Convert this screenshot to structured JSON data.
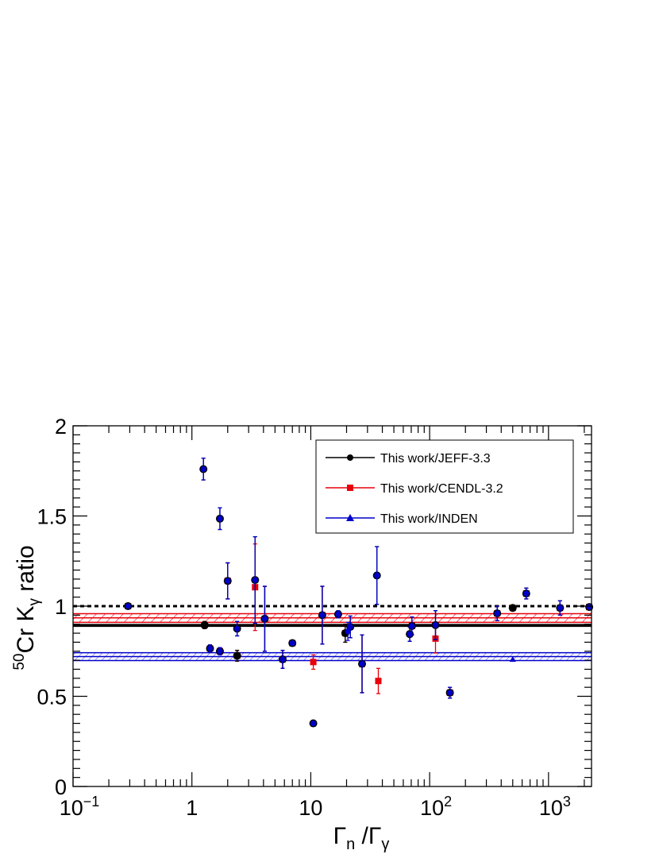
{
  "chart_data": {
    "type": "scatter",
    "x_scale": "log",
    "xlim": [
      0.1,
      2300
    ],
    "ylim": [
      0,
      2
    ],
    "grid": false,
    "legend_position": "top-right",
    "colors": {
      "jeff": "#000000",
      "cendl": "#e8000b",
      "inden": "#0000cc"
    },
    "x_tick_labels": [
      {
        "x": 0.1,
        "base": "10",
        "exp": "−1"
      },
      {
        "x": 1,
        "base": "1",
        "exp": ""
      },
      {
        "x": 10,
        "base": "10",
        "exp": ""
      },
      {
        "x": 100,
        "base": "10",
        "exp": "2"
      },
      {
        "x": 1000,
        "base": "10",
        "exp": "3"
      }
    ],
    "y_tick_labels": [
      {
        "y": 0,
        "label": "0"
      },
      {
        "y": 0.5,
        "label": "0.5"
      },
      {
        "y": 1,
        "label": "1"
      },
      {
        "y": 1.5,
        "label": "1.5"
      },
      {
        "y": 2,
        "label": "2"
      }
    ],
    "xlabel": {
      "main": "Γ",
      "sub1": "n",
      "mid": " /Γ",
      "sub2": "γ"
    },
    "ylabel": {
      "sup": "50",
      "main": "Cr K",
      "sub": "γ",
      "tail": " ratio"
    },
    "legend": [
      "This work/JEFF-3.3",
      "This work/CENDL-3.2",
      "This work/INDEN"
    ],
    "bands": [
      {
        "series": 0,
        "center": 0.893,
        "low": 0.888,
        "high": 0.898
      },
      {
        "series": 1,
        "center": 0.935,
        "low": 0.91,
        "high": 0.958
      },
      {
        "series": 2,
        "center": 0.72,
        "low": 0.698,
        "high": 0.742
      }
    ],
    "reference_line": 1.0,
    "series": [
      {
        "name": "This work/JEFF-3.3",
        "marker": "circle",
        "points": [
          {
            "x": 0.29,
            "y": 1.0,
            "err": 0.0
          },
          {
            "x": 1.25,
            "y": 1.76,
            "err": 0.06
          },
          {
            "x": 1.28,
            "y": 0.895,
            "err": 0.02
          },
          {
            "x": 1.42,
            "y": 0.765,
            "err": 0.02
          },
          {
            "x": 1.72,
            "y": 1.485,
            "err": 0.06
          },
          {
            "x": 1.72,
            "y": 0.75,
            "err": 0.02
          },
          {
            "x": 2.0,
            "y": 1.14,
            "err": 0.1
          },
          {
            "x": 2.4,
            "y": 0.875,
            "err": 0.04
          },
          {
            "x": 2.4,
            "y": 0.725,
            "err": 0.03
          },
          {
            "x": 3.4,
            "y": 1.145,
            "err": 0.24
          },
          {
            "x": 4.1,
            "y": 0.93,
            "err": 0.18
          },
          {
            "x": 5.8,
            "y": 0.705,
            "err": 0.05
          },
          {
            "x": 7.0,
            "y": 0.795,
            "err": 0.01
          },
          {
            "x": 10.5,
            "y": 0.35,
            "err": 0.0
          },
          {
            "x": 12.5,
            "y": 0.95,
            "err": 0.16
          },
          {
            "x": 17.0,
            "y": 0.955,
            "err": 0.02
          },
          {
            "x": 19.5,
            "y": 0.85,
            "err": 0.05
          },
          {
            "x": 21.5,
            "y": 0.885,
            "err": 0.06
          },
          {
            "x": 27.0,
            "y": 0.68,
            "err": 0.16
          },
          {
            "x": 36.0,
            "y": 1.17,
            "err": 0.16
          },
          {
            "x": 68.0,
            "y": 0.845,
            "err": 0.04
          },
          {
            "x": 71.0,
            "y": 0.89,
            "err": 0.05
          },
          {
            "x": 112.0,
            "y": 0.895,
            "err": 0.08
          },
          {
            "x": 148.0,
            "y": 0.52,
            "err": 0.03
          },
          {
            "x": 370.0,
            "y": 0.96,
            "err": 0.04
          },
          {
            "x": 500.0,
            "y": 0.99,
            "err": 0.01
          },
          {
            "x": 650.0,
            "y": 1.07,
            "err": 0.03
          },
          {
            "x": 1250.0,
            "y": 0.99,
            "err": 0.04
          },
          {
            "x": 2200.0,
            "y": 0.995,
            "err": 0.01
          }
        ]
      },
      {
        "name": "This work/CENDL-3.2",
        "marker": "square",
        "points": [
          {
            "x": 0.29,
            "y": 1.0,
            "err": 0.0
          },
          {
            "x": 1.28,
            "y": 0.895,
            "err": 0.02
          },
          {
            "x": 1.42,
            "y": 0.765,
            "err": 0.02
          },
          {
            "x": 1.72,
            "y": 0.75,
            "err": 0.02
          },
          {
            "x": 2.0,
            "y": 1.14,
            "err": 0.1
          },
          {
            "x": 2.4,
            "y": 0.725,
            "err": 0.03
          },
          {
            "x": 3.4,
            "y": 1.105,
            "err": 0.24
          },
          {
            "x": 4.1,
            "y": 0.93,
            "err": 0.18
          },
          {
            "x": 5.8,
            "y": 0.705,
            "err": 0.05
          },
          {
            "x": 7.0,
            "y": 0.795,
            "err": 0.01
          },
          {
            "x": 10.5,
            "y": 0.69,
            "err": 0.04
          },
          {
            "x": 12.5,
            "y": 0.95,
            "err": 0.16
          },
          {
            "x": 19.5,
            "y": 0.85,
            "err": 0.05
          },
          {
            "x": 27.0,
            "y": 0.68,
            "err": 0.16
          },
          {
            "x": 37.0,
            "y": 0.585,
            "err": 0.07
          },
          {
            "x": 71.0,
            "y": 0.89,
            "err": 0.05
          },
          {
            "x": 112.0,
            "y": 0.82,
            "err": 0.08
          },
          {
            "x": 148.0,
            "y": 0.52,
            "err": 0.03
          },
          {
            "x": 370.0,
            "y": 0.96,
            "err": 0.04
          },
          {
            "x": 500.0,
            "y": 0.99,
            "err": 0.01
          },
          {
            "x": 650.0,
            "y": 1.07,
            "err": 0.03
          },
          {
            "x": 1250.0,
            "y": 0.99,
            "err": 0.04
          },
          {
            "x": 2200.0,
            "y": 0.995,
            "err": 0.01
          }
        ]
      },
      {
        "name": "This work/INDEN",
        "marker": "triangle",
        "points": [
          {
            "x": 0.29,
            "y": 1.0,
            "err": 0.0
          },
          {
            "x": 1.25,
            "y": 1.76,
            "err": 0.06
          },
          {
            "x": 1.42,
            "y": 0.765,
            "err": 0.02
          },
          {
            "x": 1.72,
            "y": 1.485,
            "err": 0.06
          },
          {
            "x": 1.72,
            "y": 0.75,
            "err": 0.02
          },
          {
            "x": 2.0,
            "y": 1.14,
            "err": 0.1
          },
          {
            "x": 2.4,
            "y": 0.875,
            "err": 0.04
          },
          {
            "x": 3.4,
            "y": 1.145,
            "err": 0.24
          },
          {
            "x": 4.1,
            "y": 0.93,
            "err": 0.18
          },
          {
            "x": 5.8,
            "y": 0.705,
            "err": 0.05
          },
          {
            "x": 7.0,
            "y": 0.795,
            "err": 0.01
          },
          {
            "x": 10.5,
            "y": 0.35,
            "err": 0.0
          },
          {
            "x": 12.5,
            "y": 0.95,
            "err": 0.16
          },
          {
            "x": 17.0,
            "y": 0.955,
            "err": 0.02
          },
          {
            "x": 20.5,
            "y": 0.86,
            "err": 0.05
          },
          {
            "x": 21.5,
            "y": 0.885,
            "err": 0.06
          },
          {
            "x": 27.0,
            "y": 0.68,
            "err": 0.16
          },
          {
            "x": 36.0,
            "y": 1.17,
            "err": 0.16
          },
          {
            "x": 68.0,
            "y": 0.845,
            "err": 0.04
          },
          {
            "x": 71.0,
            "y": 0.89,
            "err": 0.05
          },
          {
            "x": 112.0,
            "y": 0.895,
            "err": 0.08
          },
          {
            "x": 148.0,
            "y": 0.52,
            "err": 0.03
          },
          {
            "x": 370.0,
            "y": 0.96,
            "err": 0.04
          },
          {
            "x": 500.0,
            "y": 0.705,
            "err": 0.0
          },
          {
            "x": 650.0,
            "y": 1.07,
            "err": 0.03
          },
          {
            "x": 1250.0,
            "y": 0.99,
            "err": 0.04
          },
          {
            "x": 2200.0,
            "y": 0.995,
            "err": 0.01
          }
        ]
      }
    ]
  }
}
